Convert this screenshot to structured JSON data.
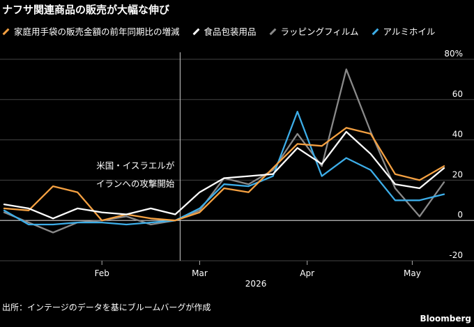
{
  "title": "ナフサ関連商品の販売が大幅な伸び",
  "legend": [
    {
      "label": "家庭用手袋の販売金額の前年同期比の増減",
      "color": "#f5a142"
    },
    {
      "label": "食品包装用品",
      "color": "#ffffff"
    },
    {
      "label": "ラッピングフィルム",
      "color": "#8a8a8a"
    },
    {
      "label": "アルミホイル",
      "color": "#3daee9"
    }
  ],
  "source": "出所：インテージのデータを基にブルームバーグが作成",
  "brand": "Bloomberg",
  "chart_data": {
    "type": "line",
    "x_unit": "week",
    "x": [
      0,
      1,
      2,
      3,
      4,
      5,
      6,
      7,
      8,
      9,
      10,
      11,
      12,
      13,
      14,
      15,
      16,
      17,
      18
    ],
    "x_ticks": [
      {
        "label": "Feb",
        "x": 4
      },
      {
        "label": "Mar",
        "x": 8
      },
      {
        "label": "Apr",
        "x": 12.4
      },
      {
        "label": "May",
        "x": 16.7
      }
    ],
    "x_year_label": "2026",
    "ylim": [
      -20,
      80
    ],
    "y_ticks": [
      "80%",
      "60",
      "40",
      "20",
      "0",
      "-20"
    ],
    "y_tick_values": [
      80,
      60,
      40,
      20,
      0,
      -20
    ],
    "annotation": {
      "lines": [
        "米国・イスラエルが",
        "イランへの攻撃開始"
      ],
      "x": 7.2
    },
    "series": [
      {
        "name": "家庭用手袋の販売金額の前年同期比の増減",
        "color": "#f5a142",
        "values": [
          6,
          5,
          17,
          14,
          0,
          3,
          1,
          0,
          4,
          16,
          14,
          26,
          38,
          37,
          46,
          43,
          23,
          20,
          27
        ]
      },
      {
        "name": "食品包装用品",
        "color": "#ffffff",
        "values": [
          8,
          6,
          1,
          6,
          4,
          3,
          6,
          3,
          14,
          21,
          22,
          23,
          36,
          28,
          44,
          33,
          18,
          16,
          26
        ]
      },
      {
        "name": "ラッピングフィルム",
        "color": "#8a8a8a",
        "values": [
          4,
          -1,
          -6,
          -1,
          0,
          2,
          -2,
          0,
          5,
          21,
          18,
          25,
          43,
          27,
          75,
          44,
          16,
          2,
          19
        ]
      },
      {
        "name": "アルミホイル",
        "color": "#3daee9",
        "values": [
          5,
          -2,
          -2,
          -1,
          -1,
          -2,
          -1,
          0,
          6,
          18,
          17,
          22,
          54,
          22,
          31,
          25,
          10,
          10,
          13
        ]
      }
    ]
  }
}
